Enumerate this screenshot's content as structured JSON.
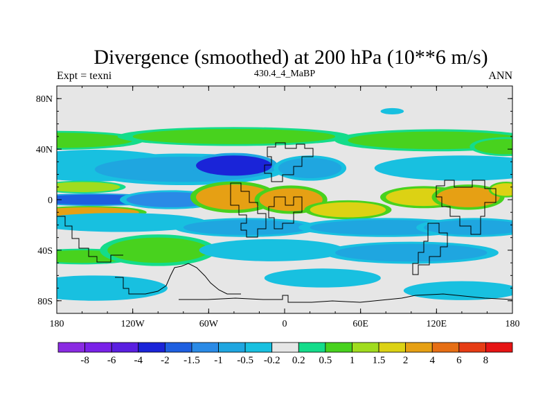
{
  "chart_data": {
    "type": "heatmap",
    "title": "Divergence (smoothed) at 200 hPa (10**6 m/s)",
    "left_subtitle": "Expt = texni",
    "center_subtitle": "430.4_4_MaBP",
    "right_subtitle": "ANN",
    "x_ticks": [
      {
        "value": -180,
        "label": "180"
      },
      {
        "value": -120,
        "label": "120W"
      },
      {
        "value": -60,
        "label": "60W"
      },
      {
        "value": 0,
        "label": "0"
      },
      {
        "value": 60,
        "label": "60E"
      },
      {
        "value": 120,
        "label": "120E"
      },
      {
        "value": 180,
        "label": "180"
      }
    ],
    "y_ticks": [
      {
        "value": 80,
        "label": "80N"
      },
      {
        "value": 40,
        "label": "40N"
      },
      {
        "value": 0,
        "label": "0"
      },
      {
        "value": -40,
        "label": "40S"
      },
      {
        "value": -80,
        "label": "80S"
      }
    ],
    "xlim": [
      -180,
      180
    ],
    "ylim": [
      -90,
      90
    ],
    "colorbar": {
      "colors": [
        "#8a2be2",
        "#7a22e8",
        "#5a1fe0",
        "#1a24d8",
        "#1e5fe0",
        "#2a8ae6",
        "#1fa6e0",
        "#18c0e0",
        "#e6e6e6",
        "#14dc8a",
        "#48d21e",
        "#a0dc1e",
        "#dcd214",
        "#e6a014",
        "#e66e14",
        "#e63c14",
        "#e61414"
      ],
      "labels": [
        "-8",
        "-6",
        "-4",
        "-2",
        "-1.5",
        "-1",
        "-0.5",
        "-0.2",
        "0.2",
        "0.5",
        "1",
        "1.5",
        "2",
        "4",
        "6",
        "8"
      ]
    },
    "field_blobs": [
      {
        "lon": -180,
        "lat": 47,
        "rlon": 60,
        "rlat": 6,
        "v": 0.6
      },
      {
        "lon": -40,
        "lat": 50,
        "rlon": 80,
        "rlat": 6,
        "v": 0.6
      },
      {
        "lon": 120,
        "lat": 47,
        "rlon": 70,
        "rlat": 7,
        "v": 0.6
      },
      {
        "lon": 175,
        "lat": 42,
        "rlon": 25,
        "rlat": 6,
        "v": 0.6
      },
      {
        "lon": -150,
        "lat": 27,
        "rlon": 60,
        "rlat": 10,
        "v": -0.5
      },
      {
        "lon": -80,
        "lat": 24,
        "rlon": 70,
        "rlat": 10,
        "v": -0.8
      },
      {
        "lon": -40,
        "lat": 27,
        "rlon": 30,
        "rlat": 8,
        "v": -2.2
      },
      {
        "lon": 20,
        "lat": 25,
        "rlon": 25,
        "rlat": 8,
        "v": -0.6
      },
      {
        "lon": 140,
        "lat": 25,
        "rlon": 60,
        "rlat": 8,
        "v": -0.5
      },
      {
        "lon": -160,
        "lat": 10,
        "rlon": 30,
        "rlat": 4,
        "v": 1.0
      },
      {
        "lon": -150,
        "lat": 0,
        "rlon": 50,
        "rlat": 4,
        "v": -1.6
      },
      {
        "lon": -155,
        "lat": -10,
        "rlon": 40,
        "rlat": 4,
        "v": 2.5
      },
      {
        "lon": -90,
        "lat": 0,
        "rlon": 35,
        "rlat": 6,
        "v": -1.2
      },
      {
        "lon": -40,
        "lat": 2,
        "rlon": 30,
        "rlat": 10,
        "v": 2.8
      },
      {
        "lon": 5,
        "lat": 0,
        "rlon": 25,
        "rlat": 9,
        "v": 2.5
      },
      {
        "lon": 50,
        "lat": -8,
        "rlon": 30,
        "rlat": 6,
        "v": 1.8
      },
      {
        "lon": 110,
        "lat": 2,
        "rlon": 30,
        "rlat": 7,
        "v": 1.8
      },
      {
        "lon": 145,
        "lat": 2,
        "rlon": 25,
        "rlat": 8,
        "v": 2.6
      },
      {
        "lon": 175,
        "lat": 8,
        "rlon": 12,
        "rlat": 5,
        "v": 1.6
      },
      {
        "lon": -130,
        "lat": -18,
        "rlon": 60,
        "rlat": 6,
        "v": -0.4
      },
      {
        "lon": -30,
        "lat": -22,
        "rlon": 50,
        "rlat": 6,
        "v": -0.8
      },
      {
        "lon": 80,
        "lat": -22,
        "rlon": 60,
        "rlat": 6,
        "v": -0.7
      },
      {
        "lon": 150,
        "lat": -22,
        "rlon": 40,
        "rlat": 6,
        "v": -0.6
      },
      {
        "lon": -160,
        "lat": -45,
        "rlon": 40,
        "rlat": 5,
        "v": 0.6
      },
      {
        "lon": -100,
        "lat": -40,
        "rlon": 40,
        "rlat": 10,
        "v": 0.7
      },
      {
        "lon": -10,
        "lat": -40,
        "rlon": 50,
        "rlat": 7,
        "v": -0.5
      },
      {
        "lon": 100,
        "lat": -42,
        "rlon": 60,
        "rlat": 7,
        "v": -0.6
      },
      {
        "lon": -150,
        "lat": -70,
        "rlon": 50,
        "rlat": 8,
        "v": -0.4
      },
      {
        "lon": 30,
        "lat": -62,
        "rlon": 40,
        "rlat": 6,
        "v": -0.4
      },
      {
        "lon": 140,
        "lat": -72,
        "rlon": 40,
        "rlat": 6,
        "v": -0.5
      },
      {
        "lon": 85,
        "lat": 70,
        "rlon": 8,
        "rlat": 2,
        "v": -0.4
      }
    ]
  }
}
